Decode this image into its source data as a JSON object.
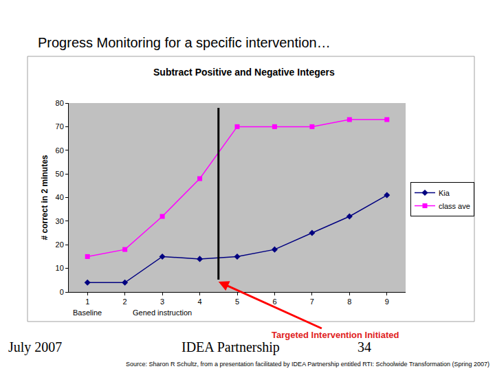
{
  "slide_title": "Progress Monitoring for a specific intervention…",
  "chart_data": {
    "type": "line",
    "title": "Subtract Positive and Negative Integers",
    "y_label": "# correct in 2 minutes",
    "x": [
      1,
      2,
      3,
      4,
      5,
      6,
      7,
      8,
      9
    ],
    "xlim": [
      0.5,
      9.5
    ],
    "xticks": [
      1,
      2,
      3,
      4,
      5,
      6,
      7,
      8,
      9
    ],
    "ylim": [
      0,
      80
    ],
    "yticks": [
      0,
      10,
      20,
      30,
      40,
      50,
      60,
      70,
      80
    ],
    "grid": false,
    "legend": "right",
    "series": [
      {
        "name": "Kia",
        "color": "#000080",
        "marker": "diamond",
        "line_style": "solid",
        "values": [
          4,
          4,
          15,
          14,
          15,
          18,
          25,
          32,
          41
        ]
      },
      {
        "name": "class ave",
        "color": "#ff00ff",
        "marker": "square",
        "line_style": "solid",
        "values": [
          15,
          18,
          32,
          48,
          70,
          70,
          70,
          73,
          73
        ]
      }
    ],
    "phase_labels": [
      {
        "text": "Baseline",
        "x": 1
      },
      {
        "text": "Gened instruction",
        "x": 3
      }
    ],
    "annotations": [
      {
        "text": "Targeted Intervention Initiated",
        "x": 4.5
      }
    ]
  },
  "footer": {
    "date": "July 2007",
    "organization": "IDEA Partnership",
    "page": 34,
    "source": "Source: Sharon R Schultz, from a presentation facilitated by IDEA Partnership entitled RTI: Schoolwide Transformation (Spring 2007)"
  }
}
